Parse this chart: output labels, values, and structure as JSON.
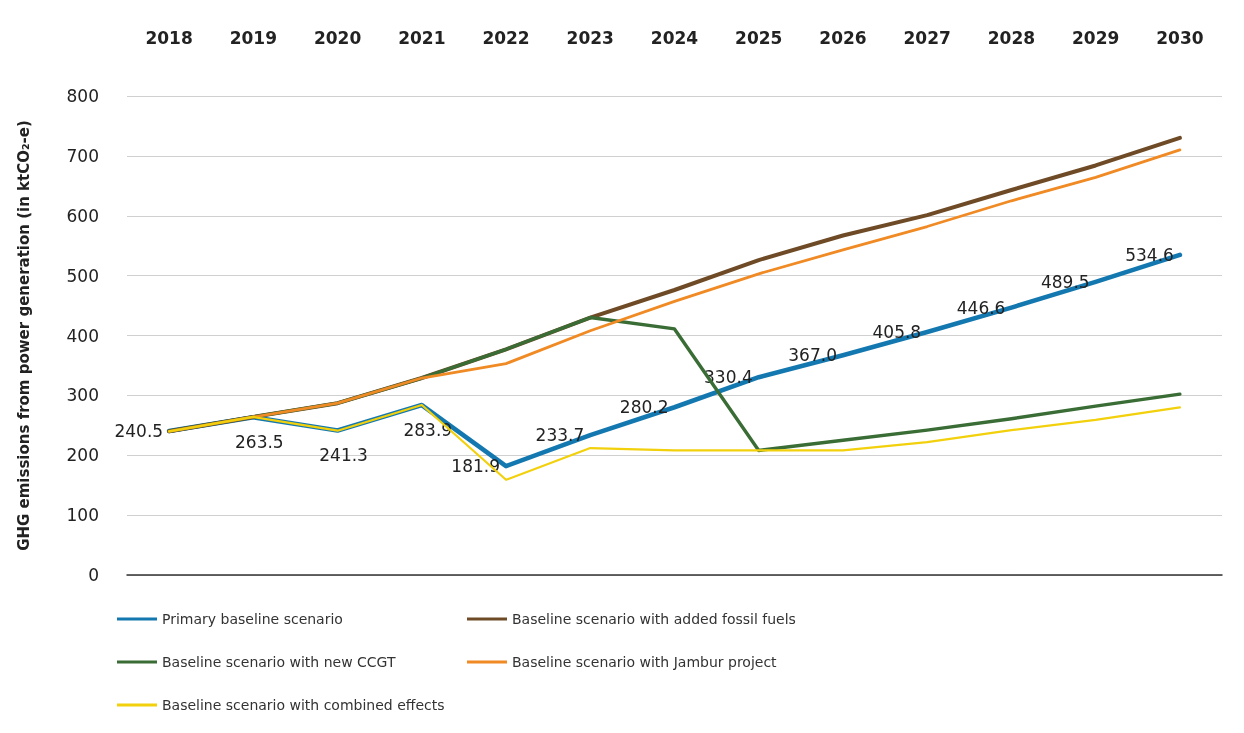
{
  "chart_data": {
    "type": "line",
    "ylabel": "GHG emissions from power generation (in ktCO₂-e)",
    "categories": [
      "2018",
      "2019",
      "2020",
      "2021",
      "2022",
      "2023",
      "2024",
      "2025",
      "2026",
      "2027",
      "2028",
      "2029",
      "2030"
    ],
    "series": [
      {
        "name": "Primary baseline scenario",
        "color": "#1478b0",
        "values": [
          240.5,
          263.5,
          241.3,
          283.9,
          181.9,
          233.7,
          280.2,
          330.4,
          367.0,
          405.8,
          446.6,
          489.5,
          534.6
        ],
        "value_labels": [
          "240.5",
          "263.5",
          "241.3",
          "283.9",
          "181.9",
          "233.7",
          "280.2",
          "330.4",
          "367.0",
          "405.8",
          "446.6",
          "489.5",
          "534.6"
        ]
      },
      {
        "name": "Baseline scenario with added fossil fuels",
        "color": "#6e4b26",
        "values": [
          240,
          264,
          287,
          329,
          377,
          430,
          476,
          526,
          567,
          601,
          643,
          684,
          730
        ]
      },
      {
        "name": "Baseline scenario with new CCGT",
        "color": "#3a6d35",
        "values": [
          240,
          264,
          287,
          329,
          377,
          430,
          411,
          208,
          225,
          242,
          261,
          282,
          302
        ]
      },
      {
        "name": "Baseline scenario with Jambur project",
        "color": "#f08a24",
        "values": [
          240,
          264,
          287,
          329,
          353,
          408,
          457,
          503,
          543,
          582,
          625,
          664,
          710
        ]
      },
      {
        "name": "Baseline scenario with combined effects",
        "color": "#f2d00c",
        "values": [
          240,
          264,
          241,
          284,
          159,
          212,
          208,
          208,
          208,
          222,
          242,
          259,
          280
        ]
      }
    ],
    "ylim": [
      0,
      800
    ],
    "yticks": [
      0,
      100,
      200,
      300,
      400,
      500,
      600,
      700,
      800
    ],
    "grid": "y",
    "legend": "bottom left",
    "marker": "none",
    "line_style": "solid"
  }
}
